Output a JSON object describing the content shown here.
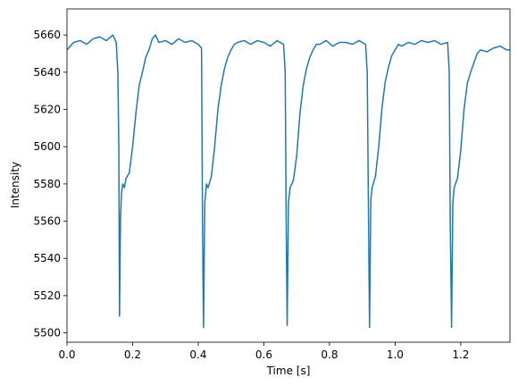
{
  "chart_data": {
    "type": "line",
    "title": "",
    "xlabel": "Time [s]",
    "ylabel": "Intensity",
    "xlim": [
      0,
      1.35
    ],
    "ylim": [
      5495,
      5674
    ],
    "grid": false,
    "xticks": [
      {
        "value": 0.0,
        "label": "0.0"
      },
      {
        "value": 0.2,
        "label": "0.2"
      },
      {
        "value": 0.4,
        "label": "0.4"
      },
      {
        "value": 0.6,
        "label": "0.6"
      },
      {
        "value": 0.8,
        "label": "0.8"
      },
      {
        "value": 1.0,
        "label": "1.0"
      },
      {
        "value": 1.2,
        "label": "1.2"
      }
    ],
    "yticks": [
      {
        "value": 5500,
        "label": "5500"
      },
      {
        "value": 5520,
        "label": "5520"
      },
      {
        "value": 5540,
        "label": "5540"
      },
      {
        "value": 5560,
        "label": "5560"
      },
      {
        "value": 5580,
        "label": "5580"
      },
      {
        "value": 5600,
        "label": "5600"
      },
      {
        "value": 5620,
        "label": "5620"
      },
      {
        "value": 5640,
        "label": "5640"
      },
      {
        "value": 5660,
        "label": "5660"
      }
    ],
    "series": [
      {
        "color": "#1f77b4",
        "x": [
          0.0,
          0.02,
          0.04,
          0.06,
          0.08,
          0.1,
          0.12,
          0.14,
          0.15,
          0.155,
          0.158,
          0.16,
          0.163,
          0.166,
          0.17,
          0.175,
          0.18,
          0.19,
          0.2,
          0.21,
          0.22,
          0.23,
          0.24,
          0.25,
          0.26,
          0.27,
          0.28,
          0.3,
          0.32,
          0.34,
          0.36,
          0.38,
          0.4,
          0.41,
          0.413,
          0.416,
          0.42,
          0.425,
          0.43,
          0.44,
          0.45,
          0.46,
          0.47,
          0.48,
          0.49,
          0.5,
          0.51,
          0.52,
          0.54,
          0.56,
          0.58,
          0.6,
          0.62,
          0.64,
          0.66,
          0.665,
          0.668,
          0.671,
          0.675,
          0.68,
          0.69,
          0.7,
          0.71,
          0.72,
          0.73,
          0.74,
          0.75,
          0.76,
          0.77,
          0.79,
          0.81,
          0.83,
          0.85,
          0.87,
          0.89,
          0.91,
          0.915,
          0.919,
          0.922,
          0.926,
          0.93,
          0.94,
          0.95,
          0.96,
          0.97,
          0.98,
          0.99,
          1.0,
          1.01,
          1.02,
          1.04,
          1.06,
          1.08,
          1.1,
          1.12,
          1.14,
          1.16,
          1.165,
          1.168,
          1.172,
          1.176,
          1.18,
          1.19,
          1.2,
          1.21,
          1.22,
          1.23,
          1.24,
          1.25,
          1.26,
          1.28,
          1.3,
          1.32,
          1.34,
          1.35
        ],
        "y": [
          5652,
          5656,
          5657,
          5655,
          5658,
          5659,
          5657,
          5660,
          5656,
          5640,
          5600,
          5509,
          5560,
          5575,
          5580,
          5578,
          5583,
          5586,
          5600,
          5618,
          5633,
          5640,
          5648,
          5652,
          5658,
          5660,
          5656,
          5657,
          5655,
          5658,
          5656,
          5657,
          5655,
          5653,
          5560,
          5503,
          5570,
          5580,
          5578,
          5584,
          5600,
          5620,
          5633,
          5642,
          5648,
          5652,
          5655,
          5656,
          5657,
          5655,
          5657,
          5656,
          5654,
          5657,
          5655,
          5640,
          5560,
          5504,
          5570,
          5578,
          5582,
          5595,
          5618,
          5633,
          5642,
          5648,
          5652,
          5655,
          5655,
          5657,
          5654,
          5656,
          5656,
          5655,
          5657,
          5655,
          5640,
          5560,
          5503,
          5572,
          5578,
          5584,
          5600,
          5621,
          5635,
          5643,
          5649,
          5652,
          5655,
          5654,
          5656,
          5655,
          5657,
          5656,
          5657,
          5655,
          5656,
          5640,
          5560,
          5503,
          5570,
          5578,
          5583,
          5598,
          5620,
          5634,
          5640,
          5645,
          5650,
          5652,
          5651,
          5653,
          5654,
          5652,
          5652
        ]
      }
    ]
  }
}
